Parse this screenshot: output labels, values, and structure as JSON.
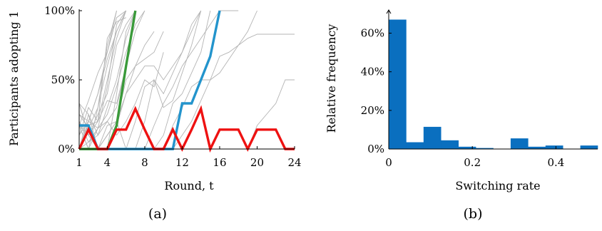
{
  "chart_data": [
    {
      "type": "line",
      "panel_label": "(a)",
      "xlabel": "Round, t",
      "ylabel": "Participants adopting 1",
      "x_ticks": [
        1,
        4,
        8,
        12,
        16,
        20,
        24
      ],
      "y_ticks": [
        "0%",
        "50%",
        "100%"
      ],
      "xlim": [
        1,
        24
      ],
      "ylim": [
        0,
        100
      ],
      "grid": false,
      "colors": {
        "background_runs": "#b4b4b4",
        "green": "#3a9a3a",
        "blue": "#2394cc",
        "red": "#ee1111"
      },
      "background_runs": [
        [
          [
            1,
            33
          ],
          [
            2,
            25
          ],
          [
            3,
            0
          ],
          [
            4,
            0
          ],
          [
            5,
            40
          ],
          [
            6,
            85
          ],
          [
            7,
            100
          ]
        ],
        [
          [
            1,
            17
          ],
          [
            2,
            10
          ],
          [
            3,
            20
          ],
          [
            4,
            50
          ],
          [
            5,
            80
          ],
          [
            6,
            100
          ]
        ],
        [
          [
            1,
            0
          ],
          [
            2,
            20
          ],
          [
            3,
            40
          ],
          [
            4,
            70
          ],
          [
            5,
            95
          ],
          [
            6,
            100
          ]
        ],
        [
          [
            1,
            25
          ],
          [
            2,
            15
          ],
          [
            3,
            30
          ],
          [
            4,
            60
          ],
          [
            5,
            85
          ],
          [
            6,
            100
          ]
        ],
        [
          [
            1,
            0
          ],
          [
            2,
            0
          ],
          [
            3,
            15
          ],
          [
            4,
            45
          ],
          [
            5,
            90
          ],
          [
            6,
            100
          ]
        ],
        [
          [
            1,
            20
          ],
          [
            2,
            10
          ],
          [
            3,
            25
          ],
          [
            4,
            40
          ],
          [
            5,
            75
          ],
          [
            6,
            90
          ],
          [
            7,
            100
          ]
        ],
        [
          [
            1,
            10
          ],
          [
            2,
            30
          ],
          [
            3,
            20
          ],
          [
            4,
            80
          ],
          [
            5,
            92
          ],
          [
            6,
            95
          ]
        ],
        [
          [
            1,
            17
          ],
          [
            2,
            35
          ],
          [
            3,
            55
          ],
          [
            4,
            70
          ],
          [
            5,
            100
          ]
        ],
        [
          [
            1,
            0
          ],
          [
            2,
            5
          ],
          [
            3,
            10
          ],
          [
            4,
            20
          ],
          [
            5,
            30
          ],
          [
            6,
            60
          ],
          [
            7,
            100
          ]
        ],
        [
          [
            1,
            25
          ],
          [
            2,
            20
          ],
          [
            3,
            40
          ],
          [
            4,
            65
          ],
          [
            5,
            85
          ],
          [
            6,
            100
          ]
        ],
        [
          [
            1,
            0
          ],
          [
            2,
            25
          ],
          [
            3,
            10
          ],
          [
            4,
            30
          ],
          [
            5,
            50
          ],
          [
            6,
            80
          ],
          [
            7,
            100
          ]
        ],
        [
          [
            1,
            17
          ],
          [
            2,
            0
          ],
          [
            3,
            30
          ],
          [
            4,
            75
          ],
          [
            5,
            100
          ]
        ],
        [
          [
            1,
            10
          ],
          [
            2,
            20
          ],
          [
            3,
            15
          ],
          [
            4,
            25
          ],
          [
            5,
            45
          ],
          [
            6,
            70
          ],
          [
            7,
            90
          ],
          [
            8,
            100
          ]
        ],
        [
          [
            1,
            0
          ],
          [
            2,
            17
          ],
          [
            3,
            20
          ],
          [
            4,
            35
          ],
          [
            5,
            33
          ],
          [
            6,
            60
          ],
          [
            7,
            85
          ],
          [
            8,
            100
          ]
        ],
        [
          [
            1,
            33
          ],
          [
            2,
            10
          ],
          [
            3,
            0
          ],
          [
            4,
            0
          ],
          [
            5,
            17
          ],
          [
            6,
            40
          ],
          [
            7,
            60
          ],
          [
            8,
            75
          ],
          [
            9,
            85
          ]
        ],
        [
          [
            1,
            17
          ],
          [
            2,
            0
          ],
          [
            3,
            0
          ],
          [
            4,
            10
          ],
          [
            5,
            20
          ],
          [
            6,
            50
          ],
          [
            7,
            60
          ],
          [
            8,
            65
          ],
          [
            9,
            70
          ],
          [
            10,
            85
          ]
        ],
        [
          [
            1,
            20
          ],
          [
            2,
            5
          ],
          [
            3,
            15
          ],
          [
            4,
            20
          ],
          [
            5,
            10
          ],
          [
            6,
            20
          ],
          [
            7,
            33
          ],
          [
            8,
            50
          ],
          [
            9,
            45
          ],
          [
            10,
            70
          ]
        ],
        [
          [
            1,
            0
          ],
          [
            2,
            0
          ],
          [
            3,
            0
          ],
          [
            4,
            10
          ],
          [
            5,
            20
          ],
          [
            6,
            40
          ],
          [
            7,
            50
          ],
          [
            8,
            60
          ],
          [
            9,
            60
          ],
          [
            10,
            50
          ],
          [
            11,
            60
          ],
          [
            12,
            70
          ],
          [
            13,
            85
          ],
          [
            14,
            100
          ]
        ],
        [
          [
            1,
            33
          ],
          [
            2,
            10
          ],
          [
            3,
            0
          ],
          [
            4,
            0
          ],
          [
            5,
            0
          ],
          [
            6,
            0
          ],
          [
            7,
            20
          ],
          [
            8,
            45
          ],
          [
            9,
            50
          ],
          [
            10,
            40
          ],
          [
            11,
            55
          ],
          [
            12,
            70
          ],
          [
            13,
            90
          ],
          [
            14,
            100
          ]
        ],
        [
          [
            1,
            17
          ],
          [
            2,
            10
          ],
          [
            3,
            0
          ],
          [
            4,
            0
          ],
          [
            5,
            0
          ],
          [
            6,
            0
          ],
          [
            7,
            0
          ],
          [
            8,
            20
          ],
          [
            9,
            50
          ],
          [
            10,
            30
          ],
          [
            11,
            35
          ],
          [
            12,
            55
          ],
          [
            13,
            75
          ],
          [
            14,
            100
          ]
        ],
        [
          [
            1,
            0
          ],
          [
            2,
            0
          ],
          [
            3,
            0
          ],
          [
            4,
            17
          ],
          [
            5,
            20
          ],
          [
            6,
            0
          ],
          [
            7,
            0
          ],
          [
            8,
            0
          ],
          [
            9,
            0
          ],
          [
            10,
            10
          ],
          [
            11,
            33
          ],
          [
            12,
            40
          ],
          [
            13,
            55
          ],
          [
            14,
            70
          ],
          [
            15,
            100
          ]
        ],
        [
          [
            1,
            17
          ],
          [
            2,
            0
          ],
          [
            3,
            0
          ],
          [
            4,
            0
          ],
          [
            5,
            0
          ],
          [
            6,
            0
          ],
          [
            7,
            0
          ],
          [
            8,
            0
          ],
          [
            9,
            17
          ],
          [
            10,
            33
          ],
          [
            11,
            45
          ],
          [
            12,
            60
          ],
          [
            13,
            70
          ],
          [
            14,
            80
          ],
          [
            15,
            90
          ],
          [
            16,
            100
          ],
          [
            18,
            100
          ]
        ],
        [
          [
            1,
            0
          ],
          [
            2,
            0
          ],
          [
            3,
            0
          ],
          [
            4,
            0
          ],
          [
            5,
            0
          ],
          [
            6,
            0
          ],
          [
            7,
            0
          ],
          [
            8,
            0
          ],
          [
            9,
            0
          ],
          [
            10,
            0
          ],
          [
            11,
            17
          ],
          [
            12,
            30
          ],
          [
            13,
            45
          ],
          [
            14,
            50
          ],
          [
            15,
            50
          ],
          [
            16,
            55
          ],
          [
            17,
            65
          ],
          [
            18,
            75
          ],
          [
            19,
            85
          ],
          [
            20,
            100
          ]
        ],
        [
          [
            1,
            0
          ],
          [
            2,
            0
          ],
          [
            3,
            0
          ],
          [
            4,
            0
          ],
          [
            5,
            0
          ],
          [
            6,
            0
          ],
          [
            7,
            0
          ],
          [
            8,
            0
          ],
          [
            9,
            0
          ],
          [
            10,
            0
          ],
          [
            11,
            0
          ],
          [
            12,
            10
          ],
          [
            13,
            20
          ],
          [
            14,
            35
          ],
          [
            15,
            50
          ],
          [
            16,
            67
          ],
          [
            17,
            70
          ],
          [
            18,
            75
          ],
          [
            19,
            80
          ],
          [
            20,
            83
          ],
          [
            21,
            83
          ],
          [
            22,
            83
          ],
          [
            23,
            83
          ],
          [
            24,
            83
          ]
        ],
        [
          [
            1,
            0
          ],
          [
            2,
            0
          ],
          [
            3,
            0
          ],
          [
            4,
            0
          ],
          [
            5,
            0
          ],
          [
            6,
            0
          ],
          [
            7,
            0
          ],
          [
            8,
            0
          ],
          [
            9,
            0
          ],
          [
            10,
            0
          ],
          [
            11,
            0
          ],
          [
            12,
            0
          ],
          [
            13,
            0
          ],
          [
            14,
            0
          ],
          [
            15,
            0
          ],
          [
            16,
            0
          ],
          [
            17,
            0
          ],
          [
            18,
            0
          ],
          [
            19,
            0
          ],
          [
            20,
            17
          ],
          [
            21,
            25
          ],
          [
            22,
            33
          ],
          [
            23,
            50
          ],
          [
            24,
            50
          ]
        ]
      ],
      "series": [
        {
          "color_key": "green",
          "points": [
            [
              1,
              0
            ],
            [
              2,
              0
            ],
            [
              3,
              0
            ],
            [
              4,
              0
            ],
            [
              5,
              17
            ],
            [
              6,
              60
            ],
            [
              7,
              100
            ]
          ]
        },
        {
          "color_key": "blue",
          "points": [
            [
              1,
              17
            ],
            [
              2,
              17
            ],
            [
              3,
              0
            ],
            [
              4,
              0
            ],
            [
              5,
              0
            ],
            [
              6,
              0
            ],
            [
              7,
              0
            ],
            [
              8,
              0
            ],
            [
              9,
              0
            ],
            [
              10,
              0
            ],
            [
              11,
              0
            ],
            [
              12,
              33
            ],
            [
              13,
              33
            ],
            [
              14,
              50
            ],
            [
              15,
              67
            ],
            [
              16,
              100
            ]
          ]
        },
        {
          "color_key": "red",
          "points": [
            [
              1,
              0
            ],
            [
              2,
              14
            ],
            [
              3,
              0
            ],
            [
              4,
              0
            ],
            [
              5,
              14
            ],
            [
              6,
              14
            ],
            [
              7,
              29
            ],
            [
              8,
              14
            ],
            [
              9,
              0
            ],
            [
              10,
              0
            ],
            [
              11,
              14
            ],
            [
              12,
              0
            ],
            [
              13,
              14
            ],
            [
              14,
              29
            ],
            [
              15,
              0
            ],
            [
              16,
              14
            ],
            [
              17,
              14
            ],
            [
              18,
              14
            ],
            [
              19,
              0
            ],
            [
              20,
              14
            ],
            [
              21,
              14
            ],
            [
              22,
              14
            ],
            [
              23,
              0
            ],
            [
              24,
              0
            ]
          ]
        }
      ]
    },
    {
      "type": "bar",
      "panel_label": "(b)",
      "xlabel": "Switching rate",
      "ylabel": "Relative frequency",
      "x_ticks": [
        "0",
        "0.2",
        "0.4"
      ],
      "x_tick_values": [
        0,
        0.2,
        0.4
      ],
      "y_ticks": [
        "0%",
        "20%",
        "40%",
        "60%"
      ],
      "y_tick_values": [
        0,
        20,
        40,
        60
      ],
      "xlim": [
        0,
        0.5
      ],
      "ylim": [
        0,
        72
      ],
      "bin_width": 0.0417,
      "bin_starts": [
        0,
        0.0417,
        0.0833,
        0.125,
        0.1667,
        0.2083,
        0.25,
        0.2917,
        0.3333,
        0.375,
        0.4167,
        0.4583
      ],
      "values": [
        67,
        3.5,
        11.5,
        4.5,
        1.2,
        0.5,
        0,
        5.5,
        1.2,
        1.8,
        0,
        1.8
      ],
      "bar_color": "#0a6fbf",
      "grid": false
    }
  ]
}
